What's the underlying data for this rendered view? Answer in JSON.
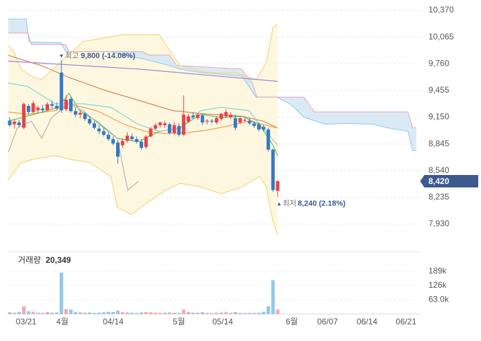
{
  "chart_data": {
    "type": "candlestick",
    "ylim": [
      7804,
      10488
    ],
    "yticks": [
      {
        "value": 10370,
        "label": "10,370"
      },
      {
        "value": 10065,
        "label": "10,065"
      },
      {
        "value": 9760,
        "label": "9,760"
      },
      {
        "value": 9455,
        "label": "9,455"
      },
      {
        "value": 9150,
        "label": "9,150"
      },
      {
        "value": 8845,
        "label": "8,845"
      },
      {
        "value": 8540,
        "label": "8,540"
      },
      {
        "value": 8235,
        "label": "8,235"
      },
      {
        "value": 7930,
        "label": "7,930"
      }
    ],
    "xlim": [
      -0.3,
      87.6
    ],
    "xticks": [
      {
        "value": 3.5,
        "label": "03/21"
      },
      {
        "value": 11.2,
        "label": "4월"
      },
      {
        "value": 22,
        "label": "04/14"
      },
      {
        "value": 36,
        "label": "5월"
      },
      {
        "value": 45.3,
        "label": "05/14"
      },
      {
        "value": 60,
        "label": "6월"
      },
      {
        "value": 67.6,
        "label": "06/07"
      },
      {
        "value": 76,
        "label": "06/14"
      },
      {
        "value": 84.3,
        "label": "06/21"
      }
    ],
    "up_color": "#e8424a",
    "down_color": "#3478c5",
    "candles": {
      "open": [
        9110,
        9070,
        9090,
        9030,
        9280,
        9210,
        9230,
        9250,
        9230,
        9300,
        9280,
        9660,
        9240,
        9360,
        9220,
        9180,
        9190,
        9130,
        9080,
        9020,
        8990,
        8950,
        8900,
        8860,
        8830,
        8880,
        8930,
        8900,
        8870,
        8810,
        8930,
        9020,
        9060,
        9060,
        9070,
        8970,
        9050,
        8950,
        9100,
        9170,
        9140,
        9170,
        9100,
        9110,
        9090,
        9130,
        9160,
        9150,
        9140,
        9090,
        9110,
        9110,
        9080,
        9070,
        9040,
        9010,
        8780,
        8310
      ],
      "high": [
        9150,
        9130,
        9120,
        9320,
        9300,
        9340,
        9280,
        9290,
        9320,
        9340,
        9320,
        9800,
        9400,
        9380,
        9260,
        9230,
        9210,
        9160,
        9110,
        9060,
        9030,
        8980,
        8930,
        8880,
        8910,
        8980,
        8960,
        8930,
        8900,
        8950,
        9040,
        9080,
        9100,
        9110,
        9090,
        9090,
        9080,
        9400,
        9190,
        9210,
        9200,
        9190,
        9130,
        9130,
        9160,
        9200,
        9240,
        9210,
        9180,
        9160,
        9140,
        9140,
        9100,
        9090,
        9060,
        9030,
        8790,
        8430
      ],
      "low": [
        9040,
        9020,
        9040,
        9010,
        9180,
        9190,
        9200,
        9200,
        9220,
        9250,
        9230,
        9200,
        9220,
        9200,
        9150,
        9140,
        9110,
        9060,
        9010,
        8960,
        8930,
        8880,
        8830,
        8620,
        8800,
        8860,
        8880,
        8850,
        8780,
        8790,
        8920,
        9000,
        9030,
        9030,
        8950,
        8950,
        8930,
        8940,
        9090,
        9130,
        9120,
        9060,
        9070,
        9080,
        9070,
        9110,
        9140,
        9130,
        9000,
        9070,
        9090,
        9060,
        9030,
        8990,
        8990,
        8760,
        8300,
        8240
      ],
      "close": [
        9060,
        9100,
        9060,
        9300,
        9210,
        9310,
        9260,
        9230,
        9300,
        9280,
        9250,
        9230,
        9350,
        9220,
        9180,
        9200,
        9130,
        9080,
        9030,
        8990,
        8950,
        8900,
        8850,
        8700,
        8880,
        8940,
        8900,
        8870,
        8800,
        8930,
        9020,
        9060,
        9090,
        9080,
        8970,
        9060,
        8950,
        9180,
        9160,
        9150,
        9180,
        9090,
        9110,
        9100,
        9140,
        9190,
        9210,
        9180,
        9030,
        9140,
        9120,
        9080,
        9050,
        9010,
        9010,
        8780,
        8320,
        8420
      ]
    },
    "cloud": {
      "fill": "#d3e6f3",
      "span_a": {
        "color": "#8cc8ea",
        "x": [
          -0.3,
          3.5,
          4.1,
          10.9,
          11.9,
          21.5,
          23.7,
          28.1,
          34,
          36.2,
          40.6,
          49.4,
          52.4,
          56.8,
          59.7,
          62.6,
          67.1,
          71.5,
          77.4,
          80.3,
          84.7,
          85.7,
          86.5
        ],
        "values": [
          10270,
          10270,
          10010,
          10000,
          9900,
          9900,
          9860,
          9820,
          9740,
          9700,
          9660,
          9620,
          9380,
          9380,
          9300,
          9150,
          9070,
          9080,
          9070,
          9030,
          8990,
          8770,
          8770
        ]
      },
      "span_b": {
        "color": "#f0a0b8",
        "x": [
          -0.3,
          3.9,
          4.6,
          11.9,
          12.6,
          28.1,
          29.6,
          34,
          35.5,
          49.3,
          51.6,
          52.6,
          62.6,
          64.8,
          84.7,
          85.7,
          86.5
        ],
        "values": [
          10110,
          10110,
          9980,
          9980,
          9900,
          9900,
          9860,
          9860,
          9740,
          9700,
          9540,
          9380,
          9380,
          9210,
          9210,
          9030,
          9030
        ]
      }
    },
    "bollinger": {
      "color": "#f3d77c",
      "fill": "#fdf7e0",
      "upper": {
        "x": [
          -0.3,
          0.9,
          2.4,
          4.6,
          6.8,
          15.6,
          24.4,
          31.8,
          36.2,
          42.1,
          47.9,
          52.4,
          54.6,
          56,
          57
        ],
        "values": [
          9975,
          9896,
          9699,
          9620,
          9580,
          10014,
          10093,
          10093,
          9738,
          9659,
          9659,
          9580,
          9777,
          10172,
          10212
        ]
      },
      "lower": {
        "x": [
          -0.3,
          2.4,
          5.3,
          9.7,
          12.6,
          17.1,
          21.5,
          22.9,
          25.9,
          28.8,
          33.2,
          36.2,
          40.6,
          45,
          49.4,
          53.1,
          54.6,
          56,
          57
        ],
        "values": [
          8435,
          8633,
          8672,
          8712,
          8672,
          8633,
          8475,
          8120,
          8041,
          8159,
          8317,
          8396,
          8356,
          8277,
          8356,
          8475,
          8356,
          7962,
          7804
        ]
      }
    },
    "lines": [
      {
        "color": "#9b82d6",
        "x": [
          -0.3,
          27.3,
          57
        ],
        "values": [
          9790,
          9700,
          9560
        ]
      },
      {
        "color": "#d8865a",
        "x": [
          -0.3,
          6.8,
          12.6,
          20,
          27.4,
          34.7,
          42.1,
          49.4,
          53.8,
          57
        ],
        "values": [
          9856,
          9738,
          9604,
          9462,
          9343,
          9225,
          9185,
          9162,
          9106,
          9027
        ]
      },
      {
        "color": "#f0a050",
        "x": [
          -0.3,
          3.8,
          9.7,
          12.6,
          18.5,
          24.4,
          28.8,
          33.2,
          37.6,
          42.1,
          46.5,
          50.9,
          53.8,
          57
        ],
        "values": [
          9209,
          9185,
          9225,
          9304,
          9225,
          9067,
          8988,
          8964,
          8972,
          9004,
          9051,
          9106,
          9067,
          9027
        ]
      },
      {
        "color": "#5cbf6a",
        "x": [
          -0.3,
          5.3,
          10.4,
          12.6,
          14.9,
          18.5,
          22.9,
          27.4,
          31.8,
          36.2,
          40.6,
          45,
          49.4,
          53.1,
          56,
          57
        ],
        "values": [
          9106,
          9185,
          9264,
          9422,
          9225,
          9106,
          8909,
          8870,
          8988,
          9027,
          9185,
          9146,
          9162,
          9067,
          8830,
          8712
        ]
      },
      {
        "color": "#86d5d8",
        "x": [
          -0.3,
          3.8,
          9.7,
          15.6,
          21.5,
          27.4,
          31.8,
          36.2,
          40.6,
          45,
          50.9,
          53.8,
          57
        ],
        "values": [
          9541,
          9501,
          9304,
          9304,
          9264,
          9067,
          8988,
          9027,
          9225,
          9264,
          9225,
          9027,
          8830
        ]
      },
      {
        "color": "#b4b4b4",
        "x": [
          -0.3,
          1.6,
          4.6,
          6.8,
          8.9,
          12.6,
          15.6,
          20,
          22.9,
          25.1,
          27.4
        ],
        "values": [
          8751,
          9027,
          9106,
          8909,
          9146,
          9304,
          9225,
          9027,
          8909,
          8317,
          8420
        ]
      }
    ],
    "high_marker": {
      "marker": "▼",
      "text": "최고",
      "value": 9800,
      "label": "9,800 (-14.08%)",
      "index": 11
    },
    "low_marker": {
      "marker": "▲",
      "text": "최저",
      "value": 8240,
      "label": "8,240 (2.18%)",
      "index": 57
    },
    "current_price": {
      "value": 8420,
      "label": "8,420",
      "color": "#3d5a8f"
    },
    "volume": {
      "title": "거래량",
      "latest": {
        "value": 20349,
        "label": "20,349"
      },
      "up_color": "#f3a7ae",
      "down_color": "#93c6ea",
      "ylim": [
        0,
        273500
      ],
      "yticks": [
        {
          "value": 189000,
          "label": "189k"
        },
        {
          "value": 126000,
          "label": "126k"
        },
        {
          "value": 63000,
          "label": "63.0k"
        }
      ],
      "values": [
        8000,
        6000,
        9000,
        34000,
        12000,
        10000,
        6000,
        5000,
        9000,
        6000,
        7000,
        184000,
        22000,
        20000,
        9000,
        8000,
        6000,
        7000,
        5000,
        6000,
        8000,
        10000,
        9000,
        15000,
        8000,
        7000,
        6000,
        5000,
        7000,
        9000,
        8000,
        6000,
        5000,
        6000,
        7000,
        6000,
        5000,
        20000,
        9000,
        6000,
        6000,
        8000,
        5000,
        4000,
        6000,
        7000,
        8000,
        5000,
        9000,
        5000,
        4000,
        5000,
        5000,
        6000,
        10000,
        35000,
        150000,
        20349
      ]
    }
  }
}
